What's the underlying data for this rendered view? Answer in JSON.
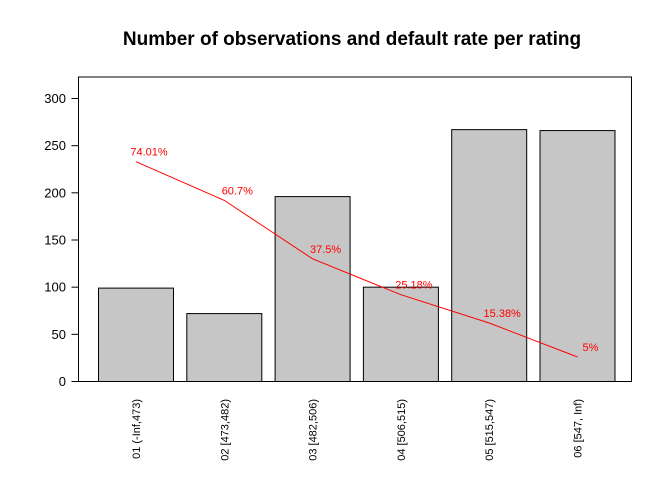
{
  "title": "Number of observations and default rate per rating",
  "chart_data": {
    "type": "bar",
    "title": "Number of observations and default rate per rating",
    "xlabel": "",
    "ylabel": "",
    "categories": [
      "01 (-Inf,473)",
      "02 [473,482)",
      "03 [482,506)",
      "04 [506,515)",
      "05 [515,547)",
      "06 [547, Inf)"
    ],
    "series": [
      {
        "name": "Number of observations",
        "type": "bar",
        "values": [
          99,
          72,
          196,
          100,
          267,
          266
        ]
      },
      {
        "name": "Default rate",
        "type": "line",
        "values_percent": [
          74.01,
          60.7,
          37.5,
          25.18,
          15.38,
          5
        ],
        "point_labels": [
          "74.01%",
          "60.7%",
          "37.5%",
          "25.18%",
          "15.38%",
          "5%"
        ],
        "line_y_in_left_axis_units": [
          233,
          192,
          130,
          92,
          62,
          26
        ]
      }
    ],
    "y_axis": {
      "ticks": [
        0,
        50,
        100,
        150,
        200,
        250,
        300
      ],
      "range": [
        0,
        300
      ]
    },
    "grid": false,
    "legend": false,
    "colors": {
      "bar_fill": "#c6c6c6",
      "bar_stroke": "#000000",
      "line": "#ff0000",
      "label_text": "#ff0000",
      "axis_text": "#000000",
      "background": "#ffffff"
    }
  }
}
